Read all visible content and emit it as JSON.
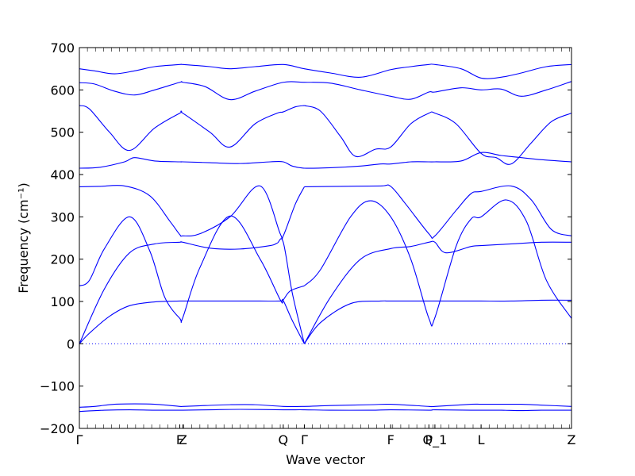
{
  "chart_data": {
    "type": "line",
    "title": "",
    "xlabel": "Wave vector",
    "ylabel": "Frequency (cm⁻¹)",
    "ylim": [
      -200,
      700
    ],
    "y_ticks": [
      -200,
      -100,
      0,
      100,
      200,
      300,
      400,
      500,
      600,
      700
    ],
    "x_ticks": [
      "Γ",
      "F",
      "Z",
      "Q",
      "Γ",
      "F",
      "P",
      "Q_1",
      "L",
      "Z"
    ],
    "x_tick_positions": [
      0,
      1.0,
      1.03,
      2.03,
      2.24,
      3.1,
      3.48,
      3.54,
      4.0,
      4.9
    ],
    "xlim": [
      0,
      4.9
    ],
    "zero_line": true,
    "line_color": "#0000ff",
    "series": [
      {
        "x": [
          0,
          0.15,
          0.35,
          0.55,
          0.75,
          1.0,
          1.03,
          1.25,
          1.5,
          1.75,
          2.03,
          2.24,
          2.5,
          2.9,
          3.1,
          3.48,
          3.54,
          3.9,
          4.0,
          4.2,
          4.4,
          4.6,
          4.9
        ],
        "values": [
          -150,
          -148,
          -143,
          -142,
          -143,
          -148,
          -148,
          -146,
          -144,
          -144,
          -148,
          -148,
          -146,
          -144,
          -143,
          -148,
          -148,
          -143,
          -143,
          -143,
          -143,
          -145,
          -148
        ]
      },
      {
        "x": [
          0,
          0.25,
          0.5,
          0.75,
          1.0,
          1.03,
          1.3,
          1.6,
          2.03,
          2.24,
          2.5,
          2.9,
          3.1,
          3.48,
          3.54,
          3.9,
          4.0,
          4.2,
          4.4,
          4.6,
          4.9
        ],
        "values": [
          -160,
          -157,
          -156,
          -157,
          -157,
          -157,
          -156,
          -155,
          -156,
          -156,
          -157,
          -157,
          -156,
          -157,
          -156,
          -157,
          -157,
          -157,
          -158,
          -157,
          -157
        ]
      },
      {
        "x": [
          0,
          0.1,
          0.3,
          0.5,
          0.75,
          1.0,
          1.03,
          1.2,
          1.5,
          1.8,
          2.0,
          2.03,
          2.12,
          2.24
        ],
        "values": [
          0,
          25,
          65,
          90,
          99,
          101,
          101,
          101,
          101,
          101,
          101,
          102,
          55,
          0
        ]
      },
      {
        "x": [
          2.24,
          2.4,
          2.7,
          3.0,
          3.1,
          3.48,
          3.54,
          3.8,
          4.0,
          4.3,
          4.6,
          4.9
        ],
        "values": [
          0,
          50,
          95,
          101,
          101,
          101,
          101,
          101,
          101,
          101,
          103,
          103
        ]
      },
      {
        "x": [
          0,
          0.25,
          0.5,
          0.75,
          1.0,
          1.03,
          1.3,
          1.6,
          1.9,
          1.97,
          2.03,
          2.12,
          2.24
        ],
        "values": [
          0,
          130,
          215,
          236,
          240,
          240,
          226,
          224,
          232,
          238,
          240,
          120,
          0
        ]
      },
      {
        "x": [
          2.24,
          2.5,
          2.8,
          3.1,
          3.3,
          3.48,
          3.54,
          3.65,
          3.9,
          4.0,
          4.3,
          4.6,
          4.9
        ],
        "values": [
          0,
          110,
          200,
          225,
          230,
          240,
          240,
          215,
          230,
          232,
          236,
          240,
          240
        ]
      },
      {
        "x": [
          0,
          0.1,
          0.25,
          0.5,
          0.7,
          0.85,
          1.0,
          1.03,
          1.2,
          1.5,
          1.8,
          2.0,
          2.03,
          2.1,
          2.24
        ],
        "values": [
          137,
          150,
          225,
          300,
          220,
          110,
          60,
          62,
          180,
          302,
          200,
          104,
          104,
          125,
          137
        ]
      },
      {
        "x": [
          2.24,
          2.4,
          2.7,
          2.9,
          3.1,
          3.3,
          3.48,
          3.54,
          3.75,
          3.9,
          4.0,
          4.25,
          4.45,
          4.65,
          4.9
        ],
        "values": [
          137,
          175,
          300,
          338,
          300,
          200,
          60,
          62,
          230,
          295,
          300,
          340,
          290,
          150,
          60
        ]
      },
      {
        "x": [
          0,
          0.2,
          0.45,
          0.7,
          0.9,
          1.0,
          1.03,
          1.2,
          1.5,
          1.8,
          2.0,
          2.03,
          2.15,
          2.24
        ],
        "values": [
          371,
          372,
          373,
          350,
          290,
          258,
          255,
          260,
          300,
          373,
          260,
          255,
          330,
          371
        ]
      },
      {
        "x": [
          2.24,
          2.6,
          3.0,
          3.1,
          3.25,
          3.48,
          3.54,
          3.75,
          3.9,
          4.0,
          4.3,
          4.5,
          4.7,
          4.9
        ],
        "values": [
          371,
          372,
          373,
          372,
          330,
          260,
          255,
          315,
          355,
          360,
          373,
          340,
          270,
          255
        ]
      },
      {
        "x": [
          0,
          0.2,
          0.45,
          0.55,
          0.75,
          1.0,
          1.03,
          1.3,
          1.6,
          1.9,
          2.03,
          2.12,
          2.24,
          2.5,
          2.8,
          3.0,
          3.1,
          3.3,
          3.48,
          3.54,
          3.8,
          4.0,
          4.2,
          4.4,
          4.6,
          4.9
        ],
        "values": [
          415,
          417,
          430,
          440,
          432,
          430,
          430,
          428,
          426,
          430,
          430,
          420,
          415,
          416,
          420,
          425,
          425,
          430,
          430,
          430,
          432,
          452,
          445,
          440,
          435,
          430
        ]
      },
      {
        "x": [
          0,
          0.1,
          0.3,
          0.5,
          0.75,
          1.0,
          1.03,
          1.3,
          1.5,
          1.75,
          1.97,
          2.03,
          2.15,
          2.24
        ],
        "values": [
          563,
          555,
          500,
          457,
          510,
          545,
          545,
          500,
          465,
          520,
          545,
          548,
          560,
          563
        ]
      },
      {
        "x": [
          2.24,
          2.4,
          2.6,
          2.75,
          2.95,
          3.1,
          3.3,
          3.48,
          3.54,
          3.75,
          4.0,
          4.15,
          4.3,
          4.5,
          4.7,
          4.9
        ],
        "values": [
          563,
          550,
          490,
          443,
          460,
          465,
          520,
          545,
          545,
          520,
          450,
          440,
          425,
          475,
          525,
          545
        ]
      },
      {
        "x": [
          0,
          0.15,
          0.35,
          0.55,
          0.75,
          1.0,
          1.03,
          1.25,
          1.5,
          1.75,
          2.03,
          2.24,
          2.5,
          2.8,
          3.1,
          3.3,
          3.48,
          3.54,
          3.8,
          4.0,
          4.2,
          4.4,
          4.65,
          4.9
        ],
        "values": [
          617,
          614,
          597,
          588,
          600,
          618,
          618,
          608,
          577,
          597,
          618,
          618,
          616,
          600,
          585,
          578,
          595,
          595,
          605,
          600,
          602,
          585,
          600,
          620
        ]
      },
      {
        "x": [
          0,
          0.15,
          0.35,
          0.55,
          0.75,
          1.0,
          1.03,
          1.3,
          1.5,
          1.75,
          2.03,
          2.24,
          2.5,
          2.8,
          3.1,
          3.3,
          3.48,
          3.54,
          3.8,
          4.0,
          4.2,
          4.4,
          4.65,
          4.9
        ],
        "values": [
          650,
          645,
          638,
          645,
          655,
          660,
          660,
          655,
          650,
          655,
          660,
          650,
          640,
          630,
          648,
          655,
          660,
          660,
          650,
          628,
          630,
          640,
          655,
          660
        ]
      }
    ]
  }
}
